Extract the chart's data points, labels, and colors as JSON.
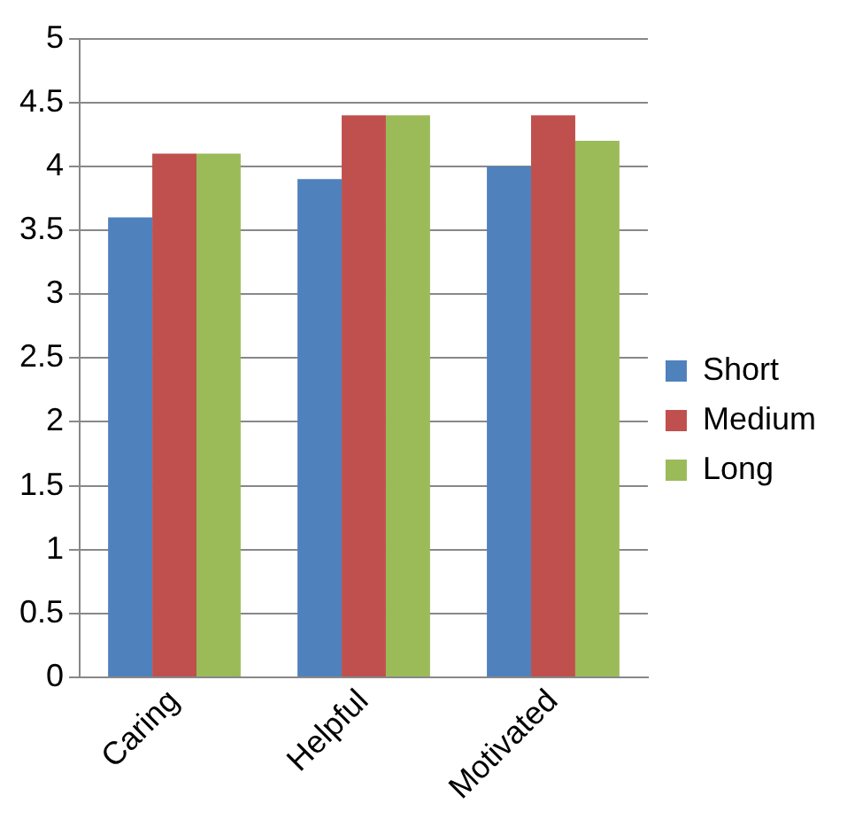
{
  "chart_data": {
    "type": "bar",
    "categories": [
      "Caring",
      "Helpful",
      "Motivated"
    ],
    "series": [
      {
        "name": "Short",
        "color": "#4f81bd",
        "values": [
          3.6,
          3.9,
          4.0
        ]
      },
      {
        "name": "Medium",
        "color": "#c0504d",
        "values": [
          4.1,
          4.4,
          4.4
        ]
      },
      {
        "name": "Long",
        "color": "#9bbb59",
        "values": [
          4.1,
          4.4,
          4.2
        ]
      }
    ],
    "ylim": [
      0,
      5
    ],
    "yticks": [
      0,
      0.5,
      1,
      1.5,
      2,
      2.5,
      3,
      3.5,
      4,
      4.5,
      5
    ],
    "grid": "y",
    "legend": "right"
  }
}
